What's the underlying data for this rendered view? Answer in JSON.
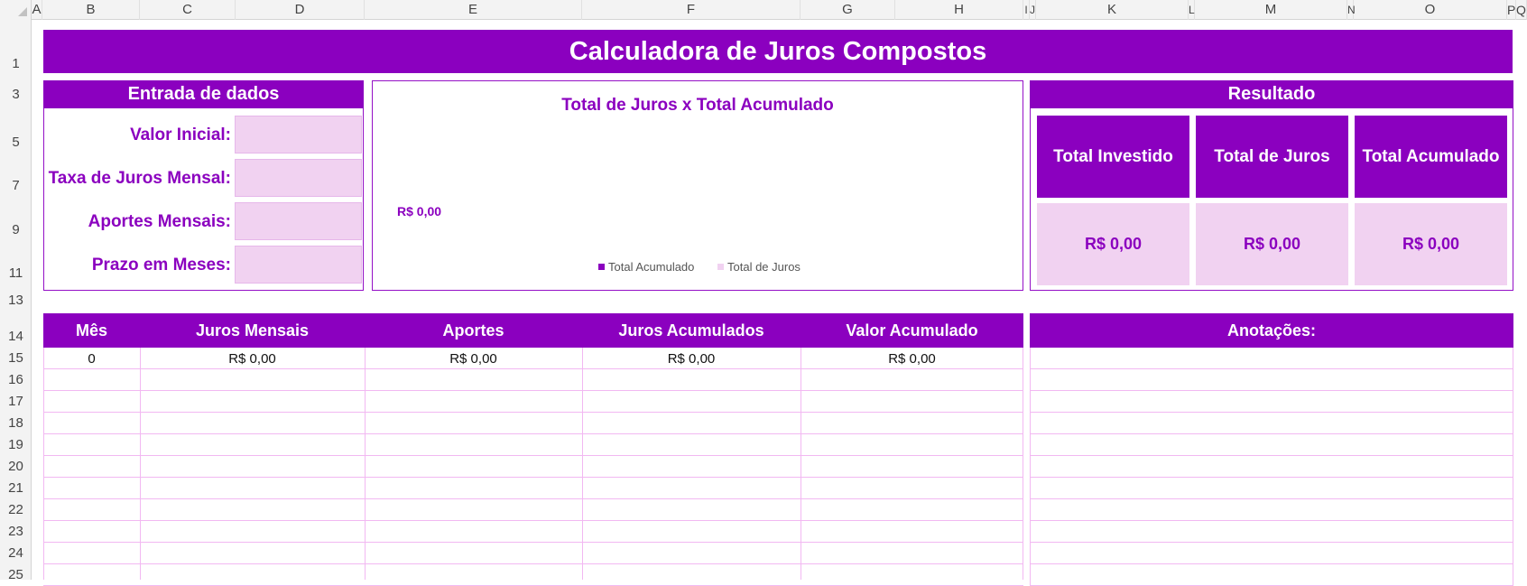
{
  "columns": [
    "A",
    "B",
    "C",
    "D",
    "E",
    "F",
    "G",
    "H",
    "I",
    "J",
    "K",
    "L",
    "M",
    "N",
    "O",
    "P",
    "Q"
  ],
  "rows": [
    "1",
    "3",
    "5",
    "7",
    "9",
    "11",
    "13",
    "14",
    "15",
    "16",
    "17",
    "18",
    "19",
    "20",
    "21",
    "22",
    "23",
    "24",
    "25"
  ],
  "title": "Calculadora de Juros Compostos",
  "input": {
    "header": "Entrada de dados",
    "labels": [
      "Valor Inicial:",
      "Taxa de Juros Mensal:",
      "Aportes Mensais:",
      "Prazo em Meses:"
    ]
  },
  "chart": {
    "title": "Total de Juros x Total Acumulado",
    "value_label": "R$ 0,00",
    "legend": [
      {
        "name": "Total Acumulado",
        "color": "#8b00bf"
      },
      {
        "name": "Total de Juros",
        "color": "#f1d2f1"
      }
    ]
  },
  "chart_data": {
    "type": "bar",
    "title": "Total de Juros x Total Acumulado",
    "series": [
      {
        "name": "Total Acumulado",
        "values": [
          0
        ]
      },
      {
        "name": "Total de Juros",
        "values": [
          0
        ]
      }
    ],
    "data_labels": [
      "R$ 0,00"
    ]
  },
  "result": {
    "header": "Resultado",
    "cards": [
      {
        "label": "Total Investido",
        "value": "R$ 0,00"
      },
      {
        "label": "Total de Juros",
        "value": "R$ 0,00"
      },
      {
        "label": "Total Acumulado",
        "value": "R$ 0,00"
      }
    ]
  },
  "table": {
    "headers": [
      "Mês",
      "Juros Mensais",
      "Aportes",
      "Juros Acumulados",
      "Valor Acumulado"
    ],
    "first_row": [
      "0",
      "R$ 0,00",
      "R$ 0,00",
      "R$ 0,00",
      "R$ 0,00"
    ]
  },
  "notes": {
    "header": "Anotações:"
  },
  "colors": {
    "purple": "#8b00bf",
    "light_pink": "#f1d2f1",
    "grid_pink": "#f2b8f2"
  }
}
